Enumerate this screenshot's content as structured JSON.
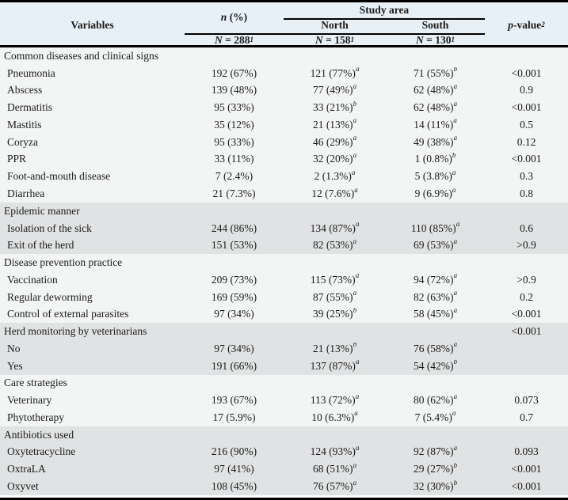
{
  "colors": {
    "header_bg": "#e8f0f7",
    "band_light": "#f3f4f4",
    "band_shaded": "#e1e2e3",
    "border": "#000000",
    "text": "#1b1b1b"
  },
  "table": {
    "header": {
      "variables": "Variables",
      "n_overall_italic": "n",
      "n_overall_rest": " (%)",
      "study_area": "Study area",
      "north": "North",
      "south": "South",
      "p_italic": "p",
      "p_rest": "-value",
      "p_sup": "2",
      "counts": [
        {
          "prefix": "N",
          "rest": " = 288",
          "sup": "1"
        },
        {
          "prefix": "N",
          "rest": " = 158",
          "sup": "1"
        },
        {
          "prefix": "N",
          "rest": " = 130",
          "sup": "1"
        }
      ]
    },
    "sections": [
      {
        "label": "Common diseases and clinical signs",
        "shaded": false,
        "p": "",
        "rows": [
          {
            "label": "Pneumonia",
            "overall": "192 (67%)",
            "north": "121 (77%)",
            "north_sup": "a",
            "south": "71 (55%)",
            "south_sup": "b",
            "p": "<0.001"
          },
          {
            "label": "Abscess",
            "overall": "139 (48%)",
            "north": "77 (49%)",
            "north_sup": "a",
            "south": "62 (48%)",
            "south_sup": "a",
            "p": "0.9"
          },
          {
            "label": "Dermatitis",
            "overall": "95 (33%)",
            "north": "33 (21%)",
            "north_sup": "b",
            "south": "62 (48%)",
            "south_sup": "a",
            "p": "<0.001"
          },
          {
            "label": "Mastitis",
            "overall": "35 (12%)",
            "north": "21 (13%)",
            "north_sup": "a",
            "south": "14 (11%)",
            "south_sup": "a",
            "p": "0.5"
          },
          {
            "label": "Coryza",
            "overall": "95 (33%)",
            "north": "46 (29%)",
            "north_sup": "a",
            "south": "49 (38%)",
            "south_sup": "a",
            "p": "0.12"
          },
          {
            "label": "PPR",
            "overall": "33 (11%)",
            "north": "32 (20%)",
            "north_sup": "a",
            "south": "1 (0.8%)",
            "south_sup": "b",
            "p": "<0.001"
          },
          {
            "label": "Foot-and-mouth disease",
            "overall": "7 (2.4%)",
            "north": "2 (1.3%)",
            "north_sup": "a",
            "south": "5 (3.8%)",
            "south_sup": "a",
            "p": "0.3"
          },
          {
            "label": "Diarrhea",
            "overall": "21 (7.3%)",
            "north": "12 (7.6%)",
            "north_sup": "a",
            "south": "9 (6.9%)",
            "south_sup": "a",
            "p": "0.8"
          }
        ]
      },
      {
        "label": "Epidemic manner",
        "shaded": true,
        "p": "",
        "rows": [
          {
            "label": "Isolation of the sick",
            "overall": "244 (86%)",
            "north": "134 (87%)",
            "north_sup": "a",
            "south": "110 (85%)",
            "south_sup": "a",
            "p": "0.6"
          },
          {
            "label": "Exit of the herd",
            "overall": "151 (53%)",
            "north": "82 (53%)",
            "north_sup": "a",
            "south": "69 (53%)",
            "south_sup": "a",
            "p": ">0.9"
          }
        ]
      },
      {
        "label": "Disease prevention practice",
        "shaded": false,
        "p": "",
        "rows": [
          {
            "label": "Vaccination",
            "overall": "209 (73%)",
            "north": "115 (73%)",
            "north_sup": "a",
            "south": "94 (72%)",
            "south_sup": "a",
            "p": ">0.9"
          },
          {
            "label": "Regular deworming",
            "overall": "169 (59%)",
            "north": "87 (55%)",
            "north_sup": "a",
            "south": "82 (63%)",
            "south_sup": "a",
            "p": "0.2"
          },
          {
            "label": "Control of external parasites",
            "overall": "97 (34%)",
            "north": "39 (25%)",
            "north_sup": "b",
            "south": "58 (45%)",
            "south_sup": "a",
            "p": "<0.001"
          }
        ]
      },
      {
        "label": "Herd monitoring by veterinarians",
        "shaded": true,
        "p": "<0.001",
        "rows": [
          {
            "label": "No",
            "overall": "97 (34%)",
            "north": "21 (13%)",
            "north_sup": "b",
            "south": "76 (58%)",
            "south_sup": "a",
            "p": ""
          },
          {
            "label": "Yes",
            "overall": "191 (66%)",
            "north": "137 (87%)",
            "north_sup": "a",
            "south": "54 (42%)",
            "south_sup": "b",
            "p": ""
          }
        ]
      },
      {
        "label": "Care strategies",
        "shaded": false,
        "p": "",
        "rows": [
          {
            "label": "Veterinary",
            "overall": "193 (67%)",
            "north": "113 (72%)",
            "north_sup": "a",
            "south": "80 (62%)",
            "south_sup": "a",
            "p": "0.073"
          },
          {
            "label": "Phytotherapy",
            "overall": "17 (5.9%)",
            "north": "10 (6.3%)",
            "north_sup": "a",
            "south": "7 (5.4%)",
            "south_sup": "a",
            "p": "0.7"
          }
        ]
      },
      {
        "label": "Antibiotics used",
        "shaded": true,
        "p": "",
        "rows": [
          {
            "label": "Oxytetracycline",
            "overall": "216 (90%)",
            "north": "124 (93%)",
            "north_sup": "a",
            "south": "92 (87%)",
            "south_sup": "a",
            "p": "0.093"
          },
          {
            "label": "OxtraLA",
            "overall": "97 (41%)",
            "north": "68 (51%)",
            "north_sup": "a",
            "south": "29 (27%)",
            "south_sup": "b",
            "p": "<0.001"
          },
          {
            "label": "Oxyvet",
            "overall": "108 (45%)",
            "north": "76 (57%)",
            "north_sup": "a",
            "south": "32 (30%)",
            "south_sup": "b",
            "p": "<0.001"
          }
        ]
      }
    ]
  }
}
